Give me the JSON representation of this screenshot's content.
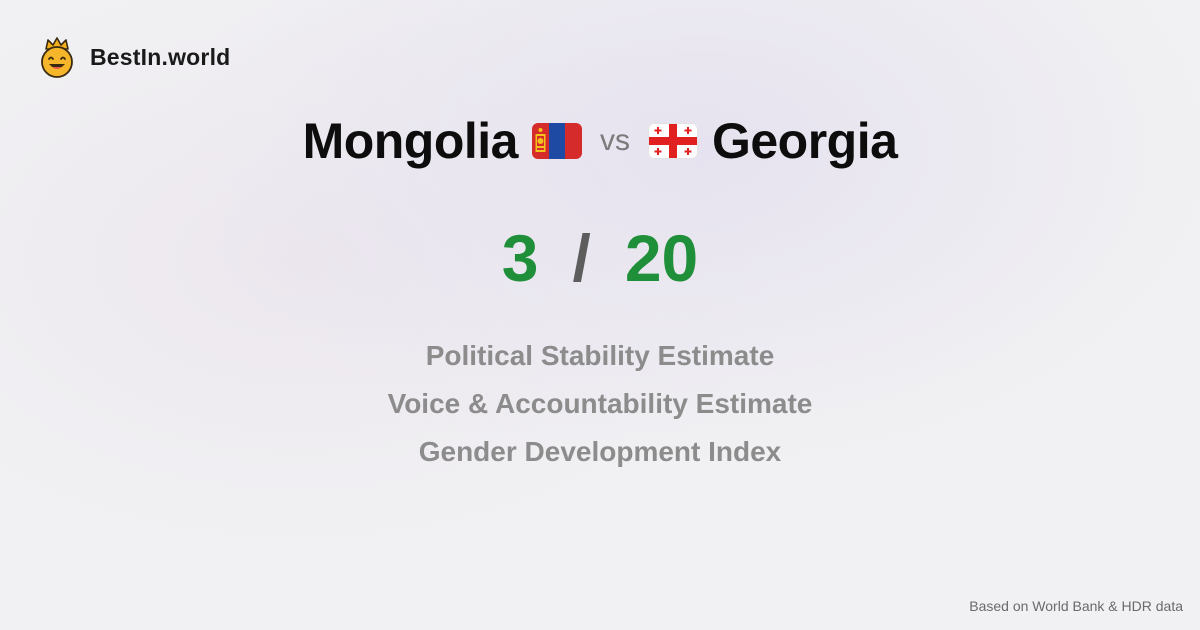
{
  "brand": {
    "name": "BestIn.world",
    "icon": "crown-smiley-icon"
  },
  "comparison": {
    "left": {
      "country": "Mongolia",
      "flag": "mongolia-flag-icon",
      "score": "3"
    },
    "vs_label": "vs",
    "right": {
      "country": "Georgia",
      "flag": "georgia-flag-icon",
      "score": "20"
    },
    "separator": "/"
  },
  "metrics": [
    "Political Stability Estimate",
    "Voice & Accountability Estimate",
    "Gender Development Index"
  ],
  "footer": {
    "source": "Based on World Bank & HDR data"
  },
  "colors": {
    "score": "#1f8f3a",
    "metric": "#8c8c8c",
    "title": "#0d0d0d"
  }
}
